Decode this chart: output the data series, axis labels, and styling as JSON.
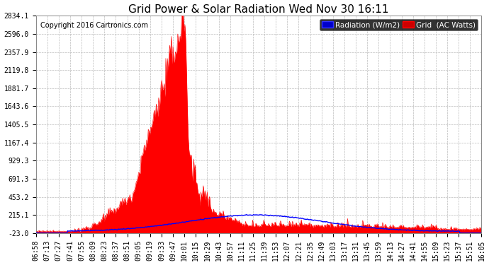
{
  "title": "Grid Power & Solar Radiation Wed Nov 30 16:11",
  "copyright": "Copyright 2016 Cartronics.com",
  "background_color": "#ffffff",
  "plot_bg_color": "#ffffff",
  "y_ticks": [
    -23.0,
    215.1,
    453.2,
    691.3,
    929.3,
    1167.4,
    1405.5,
    1643.6,
    1881.7,
    2119.8,
    2357.9,
    2596.0,
    2834.1
  ],
  "y_min": -23.0,
  "y_max": 2834.1,
  "grid_color": "#bbbbbb",
  "grid_style": "--",
  "radiation_color": "#0000ff",
  "grid_power_color": "#ff0000",
  "grid_power_fill_color": "#ff0000",
  "x_labels": [
    "06:58",
    "07:13",
    "07:27",
    "07:41",
    "07:55",
    "08:09",
    "08:23",
    "08:37",
    "08:51",
    "09:05",
    "09:19",
    "09:33",
    "09:47",
    "10:01",
    "10:15",
    "10:29",
    "10:43",
    "10:57",
    "11:11",
    "11:25",
    "11:39",
    "11:53",
    "12:07",
    "12:21",
    "12:35",
    "12:49",
    "13:03",
    "13:17",
    "13:31",
    "13:45",
    "13:59",
    "14:13",
    "14:27",
    "14:41",
    "14:55",
    "15:09",
    "15:23",
    "15:37",
    "15:51",
    "16:05"
  ],
  "n_points": 560,
  "title_fontsize": 11,
  "copyright_fontsize": 7,
  "tick_fontsize": 7,
  "legend_fontsize": 7.5
}
